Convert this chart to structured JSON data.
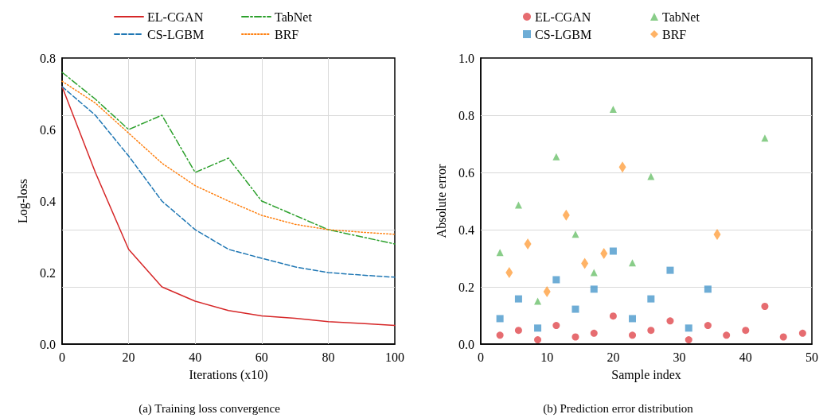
{
  "chart_data": [
    {
      "type": "line",
      "title": "(a) Training loss convergence",
      "xlabel": "Iterations (x10)",
      "ylabel": "Log-loss",
      "x": [
        0,
        10,
        20,
        30,
        40,
        50,
        60,
        70,
        80,
        90,
        100
      ],
      "xlim": [
        0,
        100
      ],
      "xticks": [
        0,
        20,
        40,
        60,
        80,
        100
      ],
      "ylim": [
        0,
        0.8
      ],
      "yticks": [
        {
          "value": 0,
          "label": "0.0"
        },
        {
          "value": 0.16,
          "label": null
        },
        0.2,
        {
          "value": 0.32,
          "label": null
        },
        0.4,
        {
          "value": 0.48,
          "label": null
        },
        0.6,
        {
          "value": 0.64,
          "label": null
        },
        0.8
      ],
      "grid": true,
      "legend": "top",
      "marker": "none",
      "series": [
        {
          "name": "EL-CGAN",
          "color": "#d62728",
          "line_style": "solid",
          "values": [
            0.72,
            0.48,
            0.265,
            0.16,
            0.12,
            0.094,
            0.079,
            0.072,
            0.063,
            0.058,
            0.052
          ]
        },
        {
          "name": "CS-LGBM",
          "color": "#1f77b4",
          "line_style": "dashed",
          "values": [
            0.72,
            0.64,
            0.526,
            0.4,
            0.32,
            0.265,
            0.24,
            0.216,
            0.2,
            0.193,
            0.187
          ]
        },
        {
          "name": "TabNet",
          "color": "#2ca02c",
          "line_style": "dashdot",
          "values": [
            0.76,
            0.685,
            0.6,
            0.64,
            0.48,
            0.52,
            0.4,
            0.36,
            0.32,
            0.3,
            0.28
          ]
        },
        {
          "name": "BRF",
          "color": "#ff7f0e",
          "line_style": "dotted",
          "values": [
            0.735,
            0.674,
            0.59,
            0.506,
            0.443,
            0.4,
            0.36,
            0.335,
            0.32,
            0.313,
            0.307
          ]
        }
      ]
    },
    {
      "type": "scatter",
      "title": "(b) Prediction error distribution",
      "xlabel": "Sample index",
      "ylabel": "Absolute error",
      "xlim": [
        0,
        50
      ],
      "xticks": [
        0,
        10,
        20,
        30,
        40,
        50
      ],
      "ylim": [
        0,
        1
      ],
      "yticks": [
        {
          "value": 0,
          "label": "0.0"
        },
        0.2,
        0.4,
        0.6,
        0.8,
        {
          "value": 1,
          "label": "1.0"
        }
      ],
      "grid": "y",
      "legend": "top",
      "series": [
        {
          "name": "EL-CGAN",
          "color": "#e0474c",
          "marker": "circle",
          "x": [
            2.9,
            5.7,
            8.6,
            11.4,
            14.3,
            17.1,
            20,
            22.9,
            25.7,
            28.6,
            31.4,
            34.3,
            37.1,
            40,
            42.9,
            45.7,
            48.6
          ],
          "values": [
            0.031,
            0.048,
            0.015,
            0.065,
            0.025,
            0.038,
            0.098,
            0.031,
            0.048,
            0.081,
            0.015,
            0.065,
            0.031,
            0.048,
            0.132,
            0.025,
            0.038
          ]
        },
        {
          "name": "CS-LGBM",
          "color": "#4a98cc",
          "marker": "square",
          "x": [
            2.9,
            5.7,
            8.6,
            11.4,
            14.3,
            17.1,
            20,
            22.9,
            25.7,
            28.6,
            31.4,
            34.3
          ],
          "values": [
            0.089,
            0.158,
            0.056,
            0.225,
            0.122,
            0.192,
            0.325,
            0.089,
            0.158,
            0.258,
            0.056,
            0.192
          ]
        },
        {
          "name": "TabNet",
          "color": "#6cc06c",
          "marker": "triangle",
          "x": [
            2.9,
            5.7,
            8.6,
            11.4,
            14.3,
            17.1,
            20,
            22.9,
            25.7,
            42.9
          ],
          "values": [
            0.32,
            0.486,
            0.15,
            0.655,
            0.384,
            0.25,
            0.821,
            0.284,
            0.586,
            0.72
          ]
        },
        {
          "name": "BRF",
          "color": "#ffa040",
          "marker": "diamond",
          "x": [
            4.3,
            7.1,
            10,
            12.9,
            15.7,
            18.6,
            21.4,
            35.7
          ],
          "values": [
            0.25,
            0.35,
            0.183,
            0.451,
            0.282,
            0.317,
            0.619,
            0.383
          ]
        }
      ]
    }
  ]
}
